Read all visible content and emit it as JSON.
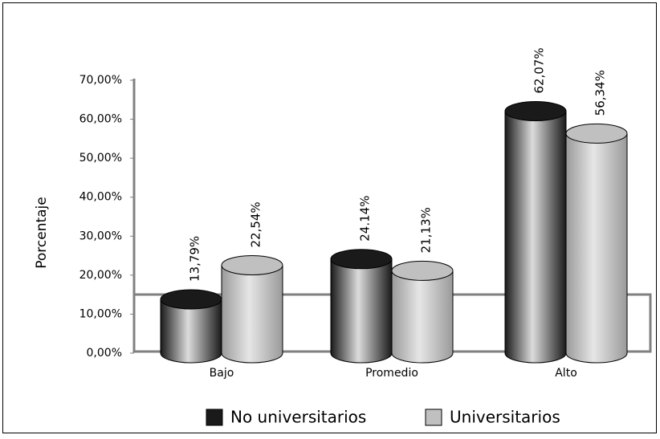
{
  "chart_data": {
    "type": "bar3d",
    "y_label": "Porcentaje",
    "categories": [
      "Bajo",
      "Promedio",
      "Alto"
    ],
    "series": [
      {
        "name": "No universitarios",
        "color": "#1a1a1a",
        "values": [
          13.79,
          24.14,
          62.07
        ],
        "value_labels": [
          "13,79%",
          "24.14%",
          "62,07%"
        ]
      },
      {
        "name": "Universitarios",
        "color": "#c0c0c0",
        "values": [
          22.54,
          21.13,
          56.34
        ],
        "value_labels": [
          "22,54%",
          "21,13%",
          "56,34%"
        ]
      }
    ],
    "ylim": [
      0,
      70
    ],
    "yticks": [
      {
        "value": 0,
        "label": "0,00%"
      },
      {
        "value": 10,
        "label": "10,00%"
      },
      {
        "value": 20,
        "label": "20,00%"
      },
      {
        "value": 30,
        "label": "30,00%"
      },
      {
        "value": 40,
        "label": "40,00%"
      },
      {
        "value": 50,
        "label": "50,00%"
      },
      {
        "value": 60,
        "label": "60,00%"
      },
      {
        "value": 70,
        "label": "70,00%"
      }
    ],
    "legend": "bottom"
  }
}
